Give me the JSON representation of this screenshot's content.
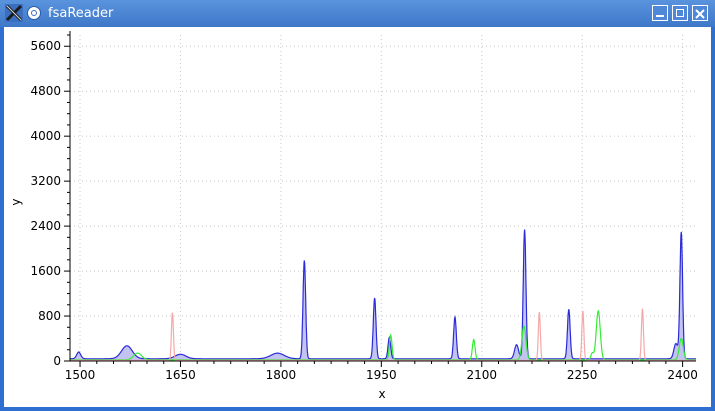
{
  "window": {
    "title": "fsaReader",
    "icons": {
      "app": "x-logo-icon",
      "pin": "pin-icon",
      "minimize": "minimize-icon",
      "maximize": "maximize-icon",
      "close": "close-icon"
    }
  },
  "chart_data": {
    "type": "line",
    "xlabel": "x",
    "ylabel": "y",
    "xlim": [
      1485,
      2420
    ],
    "ylim": [
      0,
      5800
    ],
    "xticks": [
      "1500",
      "1650",
      "1800",
      "1950",
      "2100",
      "2250",
      "2400"
    ],
    "xtick_values": [
      1500,
      1650,
      1800,
      1950,
      2100,
      2250,
      2400
    ],
    "yticks": [
      "0",
      "800",
      "1600",
      "2400",
      "3200",
      "4000",
      "4800",
      "5600"
    ],
    "ytick_values": [
      0,
      800,
      1600,
      2400,
      3200,
      4000,
      4800,
      5600
    ],
    "grid": true,
    "series": [
      {
        "color": "#2b2bd8",
        "fill": "#b8b8ee",
        "baseline": 40,
        "peaks": [
          [
            1498,
            120,
            3
          ],
          [
            1570,
            230,
            8
          ],
          [
            1650,
            80,
            8
          ],
          [
            1795,
            100,
            10
          ],
          [
            1835,
            1750,
            2
          ],
          [
            1940,
            1080,
            2
          ],
          [
            1962,
            380,
            2
          ],
          [
            2060,
            740,
            2
          ],
          [
            2152,
            250,
            3
          ],
          [
            2164,
            2300,
            2
          ],
          [
            2230,
            880,
            2
          ],
          [
            2390,
            270,
            3
          ],
          [
            2398,
            2250,
            2
          ]
        ]
      },
      {
        "color": "#33ee33",
        "fill": "none",
        "baseline": 20,
        "peaks": [
          [
            1586,
            120,
            6
          ],
          [
            1964,
            440,
            2
          ],
          [
            2088,
            360,
            2
          ],
          [
            2163,
            600,
            3
          ],
          [
            2274,
            870,
            3
          ],
          [
            2265,
            120,
            2
          ],
          [
            2398,
            380,
            3
          ]
        ]
      },
      {
        "color": "#f4a8a8",
        "fill": "none",
        "baseline": 10,
        "peaks": [
          [
            1638,
            850,
            1.5
          ],
          [
            2186,
            860,
            1.5
          ],
          [
            2251,
            880,
            1.5
          ],
          [
            2340,
            920,
            1.5
          ]
        ]
      }
    ]
  }
}
